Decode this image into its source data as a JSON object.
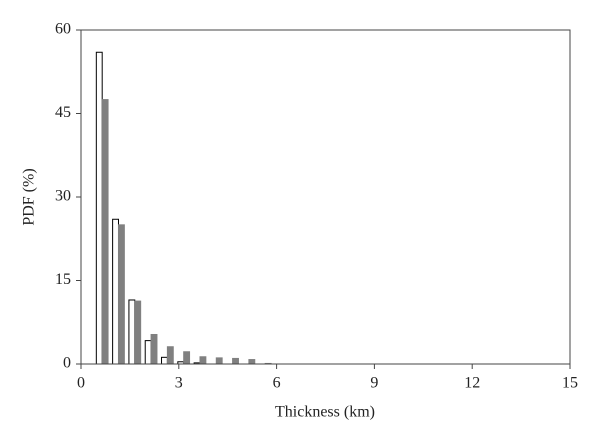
{
  "chart_data": {
    "type": "bar",
    "xlabel": "Thickness (km)",
    "ylabel": "PDF (%)",
    "x": [
      0.65,
      1.15,
      1.65,
      2.15,
      2.65,
      3.15,
      3.65,
      4.15,
      4.65,
      5.15,
      5.65
    ],
    "bar_width": 0.18,
    "series": [
      {
        "color": "#ffffff",
        "edgecolor": "#000000",
        "values": [
          56,
          26,
          11.5,
          4.2,
          1.2,
          0.4,
          0.2,
          0,
          0,
          0,
          0
        ]
      },
      {
        "color": "#808080",
        "edgecolor": "#808080",
        "values": [
          47.5,
          25,
          11.3,
          5.3,
          3.1,
          2.2,
          1.3,
          1.1,
          1.0,
          0.8,
          0.1
        ]
      }
    ],
    "xlim": [
      0,
      15
    ],
    "xticks": [
      0,
      3,
      6,
      9,
      12,
      15
    ],
    "ylim": [
      0,
      60
    ],
    "yticks": [
      0,
      15,
      30,
      45,
      60
    ],
    "grid": false
  }
}
